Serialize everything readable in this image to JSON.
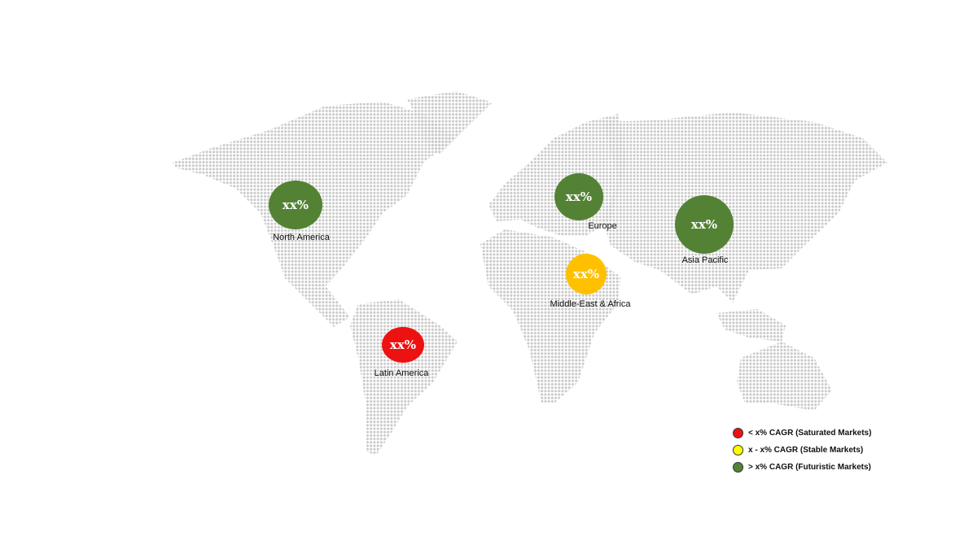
{
  "regions": [
    {
      "name": "North America",
      "value": "xx%",
      "category": "futuristic"
    },
    {
      "name": "Europe",
      "value": "xx%",
      "category": "futuristic"
    },
    {
      "name": "Asia Pacific",
      "value": "xx%",
      "category": "futuristic"
    },
    {
      "name": "Middle-East & Africa",
      "value": "xx%",
      "category": "stable"
    },
    {
      "name": "Latin America",
      "value": "xx%",
      "category": "saturated"
    }
  ],
  "colors": {
    "saturated": "#ee1111",
    "stable": "#ffc000",
    "futuristic": "#548235",
    "legend_stable": "#ffff00",
    "map_dots": "#c8c8c8"
  },
  "legend": [
    {
      "label": "< x% CAGR (Saturated Markets)",
      "color": "#ee1111"
    },
    {
      "label": "x - x% CAGR (Stable Markets)",
      "color": "#ffff00"
    },
    {
      "label": "> x% CAGR (Futuristic Markets)",
      "color": "#548235"
    }
  ]
}
